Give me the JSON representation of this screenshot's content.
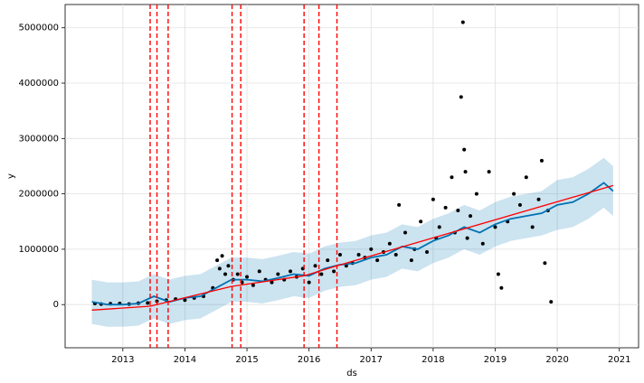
{
  "chart_data": {
    "type": "scatter",
    "xlabel": "ds",
    "ylabel": "y",
    "xlim": [
      2012.07,
      2021.31
    ],
    "ylim": [
      -780000,
      5420000
    ],
    "xticks": [
      2013,
      2014,
      2015,
      2016,
      2017,
      2018,
      2019,
      2020,
      2021
    ],
    "yticks": [
      0,
      1000000,
      2000000,
      3000000,
      4000000,
      5000000
    ],
    "grid": true,
    "points": {
      "color": "#000000",
      "x": [
        2012.55,
        2012.65,
        2012.8,
        2012.95,
        2013.1,
        2013.25,
        2013.4,
        2013.55,
        2013.7,
        2013.85,
        2014.0,
        2014.15,
        2014.3,
        2014.45,
        2014.52,
        2014.56,
        2014.6,
        2014.65,
        2014.7,
        2014.78,
        2014.85,
        2014.92,
        2015.0,
        2015.1,
        2015.2,
        2015.3,
        2015.4,
        2015.5,
        2015.6,
        2015.7,
        2015.8,
        2015.9,
        2016.0,
        2016.1,
        2016.2,
        2016.3,
        2016.4,
        2016.5,
        2016.6,
        2016.7,
        2016.8,
        2016.9,
        2017.0,
        2017.1,
        2017.2,
        2017.3,
        2017.4,
        2017.45,
        2017.55,
        2017.65,
        2017.7,
        2017.8,
        2017.9,
        2018.0,
        2018.05,
        2018.1,
        2018.2,
        2018.3,
        2018.35,
        2018.4,
        2018.45,
        2018.48,
        2018.5,
        2018.52,
        2018.55,
        2018.6,
        2018.7,
        2018.8,
        2018.9,
        2019.0,
        2019.05,
        2019.1,
        2019.2,
        2019.3,
        2019.4,
        2019.5,
        2019.6,
        2019.7,
        2019.75,
        2019.8,
        2019.85,
        2019.9
      ],
      "y": [
        20000,
        10000,
        15000,
        20000,
        10000,
        25000,
        30000,
        60000,
        80000,
        100000,
        80000,
        120000,
        150000,
        300000,
        800000,
        650000,
        880000,
        550000,
        700000,
        450000,
        550000,
        400000,
        500000,
        350000,
        600000,
        450000,
        400000,
        550000,
        450000,
        600000,
        500000,
        650000,
        400000,
        700000,
        550000,
        800000,
        600000,
        900000,
        700000,
        750000,
        900000,
        850000,
        1000000,
        800000,
        950000,
        1100000,
        900000,
        1800000,
        1300000,
        800000,
        1000000,
        1500000,
        950000,
        1900000,
        1200000,
        1400000,
        1750000,
        2300000,
        1300000,
        1700000,
        3750000,
        5100000,
        2800000,
        2400000,
        1200000,
        1600000,
        2000000,
        1100000,
        2400000,
        1400000,
        550000,
        300000,
        1500000,
        2000000,
        1800000,
        2300000,
        1400000,
        1900000,
        2600000,
        750000,
        1700000,
        50000
      ]
    },
    "forecast": {
      "color": "#0072B2",
      "x": [
        2012.5,
        2012.75,
        2013,
        2013.25,
        2013.5,
        2013.75,
        2014,
        2014.25,
        2014.5,
        2014.75,
        2015,
        2015.25,
        2015.5,
        2015.75,
        2016,
        2016.25,
        2016.5,
        2016.75,
        2017,
        2017.25,
        2017.5,
        2017.75,
        2018,
        2018.25,
        2018.5,
        2018.75,
        2019,
        2019.25,
        2019.5,
        2019.75,
        2020,
        2020.25,
        2020.5,
        2020.75,
        2020.9
      ],
      "values": [
        50000,
        0,
        0,
        20000,
        150000,
        50000,
        120000,
        150000,
        300000,
        450000,
        450000,
        420000,
        480000,
        550000,
        520000,
        650000,
        720000,
        750000,
        850000,
        900000,
        1050000,
        1000000,
        1150000,
        1250000,
        1400000,
        1300000,
        1450000,
        1550000,
        1600000,
        1650000,
        1800000,
        1850000,
        2000000,
        2200000,
        2050000
      ],
      "lower": [
        -350000,
        -400000,
        -400000,
        -380000,
        -250000,
        -350000,
        -280000,
        -250000,
        -100000,
        50000,
        50000,
        20000,
        80000,
        150000,
        120000,
        250000,
        320000,
        350000,
        450000,
        500000,
        650000,
        600000,
        750000,
        850000,
        1000000,
        900000,
        1050000,
        1150000,
        1200000,
        1250000,
        1350000,
        1400000,
        1550000,
        1750000,
        1600000
      ],
      "upper": [
        450000,
        400000,
        400000,
        420000,
        550000,
        450000,
        520000,
        550000,
        700000,
        850000,
        850000,
        820000,
        880000,
        950000,
        920000,
        1050000,
        1120000,
        1150000,
        1250000,
        1300000,
        1450000,
        1400000,
        1550000,
        1650000,
        1800000,
        1700000,
        1850000,
        1950000,
        2000000,
        2050000,
        2250000,
        2300000,
        2450000,
        2650000,
        2500000
      ]
    },
    "trend": {
      "color": "#ff0000",
      "x": [
        2012.5,
        2013.44,
        2014.76,
        2015.92,
        2016.45,
        2020.9
      ],
      "values": [
        -100000,
        -30000,
        330000,
        520000,
        700000,
        2150000
      ]
    },
    "changepoints": {
      "color": "#ff0000",
      "x": [
        2013.44,
        2013.55,
        2013.73,
        2014.76,
        2014.9,
        2015.92,
        2016.16,
        2016.45
      ]
    }
  }
}
